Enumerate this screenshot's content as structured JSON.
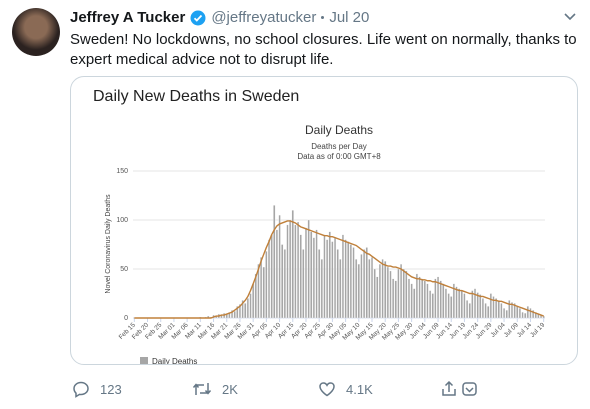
{
  "tweet": {
    "author": "Jeffrey A Tucker",
    "handle": "@jeffreyatucker",
    "date": "Jul 20",
    "text": "Sweden! No lockdowns, no school closures. Life went on normally, thanks to expert medical advice not to disrupt life."
  },
  "card": {
    "title": "Daily New Deaths in Sweden"
  },
  "actions": {
    "replies": "123",
    "retweets": "2K",
    "likes": "4.1K"
  },
  "chart_data": {
    "type": "bar",
    "title": "Daily Deaths",
    "subtitle": "Deaths per Day",
    "note": "Data as of 0:00 GMT+8",
    "y_label": "Novel Coronavirus Daily Deaths",
    "ylim": [
      0,
      150
    ],
    "yticks": [
      0,
      50,
      100,
      150
    ],
    "grid": true,
    "categories": [
      "Feb 15",
      null,
      null,
      null,
      null,
      "Feb 20",
      null,
      null,
      null,
      null,
      "Feb 25",
      null,
      null,
      null,
      null,
      "Mar 01",
      null,
      null,
      null,
      null,
      "Mar 06",
      null,
      null,
      null,
      null,
      "Mar 11",
      null,
      null,
      null,
      null,
      "Mar 16",
      null,
      null,
      null,
      null,
      "Mar 21",
      null,
      null,
      null,
      null,
      "Mar 26",
      null,
      null,
      null,
      null,
      "Mar 31",
      null,
      null,
      null,
      null,
      "Apr 05",
      null,
      null,
      null,
      null,
      "Apr 10",
      null,
      null,
      null,
      null,
      "Apr 15",
      null,
      null,
      null,
      null,
      "Apr 20",
      null,
      null,
      null,
      null,
      "Apr 25",
      null,
      null,
      null,
      null,
      "Apr 30",
      null,
      null,
      null,
      null,
      "May 05",
      null,
      null,
      null,
      null,
      "May 10",
      null,
      null,
      null,
      null,
      "May 15",
      null,
      null,
      null,
      null,
      "May 20",
      null,
      null,
      null,
      null,
      "May 25",
      null,
      null,
      null,
      null,
      "May 30",
      null,
      null,
      null,
      null,
      "Jun 04",
      null,
      null,
      null,
      null,
      "Jun 09",
      null,
      null,
      null,
      null,
      "Jun 14",
      null,
      null,
      null,
      null,
      "Jun 19",
      null,
      null,
      null,
      null,
      "Jun 24",
      null,
      null,
      null,
      null,
      "Jun 29",
      null,
      null,
      null,
      null,
      "Jul 04",
      null,
      null,
      null,
      null,
      "Jul 09",
      null,
      null,
      null,
      null,
      "Jul 14",
      null,
      null,
      null,
      null,
      "Jul 19"
    ],
    "series": [
      {
        "name": "Daily Deaths",
        "type": "bar",
        "color": "#a6a6a6",
        "values": [
          0,
          0,
          0,
          0,
          0,
          0,
          0,
          0,
          0,
          0,
          0,
          0,
          0,
          0,
          0,
          0,
          0,
          0,
          0,
          0,
          0,
          0,
          0,
          0,
          0,
          1,
          0,
          1,
          2,
          1,
          3,
          2,
          4,
          3,
          5,
          4,
          6,
          8,
          7,
          12,
          14,
          18,
          15,
          20,
          25,
          35,
          45,
          55,
          62,
          52,
          68,
          80,
          85,
          115,
          90,
          105,
          75,
          70,
          95,
          100,
          110,
          95,
          98,
          85,
          70,
          92,
          100,
          88,
          82,
          90,
          70,
          60,
          85,
          80,
          88,
          78,
          82,
          70,
          60,
          85,
          80,
          78,
          75,
          72,
          60,
          55,
          65,
          70,
          72,
          60,
          62,
          50,
          42,
          55,
          60,
          58,
          52,
          48,
          40,
          38,
          50,
          55,
          50,
          48,
          40,
          35,
          30,
          45,
          42,
          40,
          38,
          35,
          28,
          25,
          40,
          42,
          38,
          35,
          30,
          25,
          22,
          35,
          32,
          30,
          28,
          25,
          18,
          15,
          28,
          30,
          26,
          24,
          20,
          15,
          12,
          25,
          22,
          20,
          18,
          15,
          10,
          8,
          18,
          16,
          15,
          12,
          10,
          6,
          5,
          12,
          10,
          8,
          6,
          4,
          3,
          2
        ]
      },
      {
        "type": "line",
        "color": "#c0803a",
        "values": [
          0,
          0,
          0,
          0,
          0,
          0,
          0,
          0,
          0,
          0,
          0,
          0,
          0,
          0,
          0,
          0,
          0,
          0,
          0,
          0,
          0,
          0,
          0,
          0,
          0,
          0,
          0,
          0,
          0,
          0,
          1,
          2,
          2,
          3,
          3,
          4,
          5,
          6,
          8,
          10,
          12,
          15,
          18,
          22,
          28,
          35,
          42,
          50,
          58,
          65,
          72,
          78,
          85,
          90,
          94,
          96,
          97,
          98,
          99,
          99,
          98,
          97,
          95,
          93,
          92,
          91,
          90,
          89,
          88,
          87,
          86,
          85,
          84,
          84,
          83,
          83,
          82,
          81,
          80,
          79,
          78,
          77,
          76,
          75,
          74,
          72,
          70,
          68,
          66,
          65,
          63,
          61,
          59,
          57,
          55,
          54,
          53,
          53,
          52,
          52,
          51,
          50,
          48,
          46,
          44,
          42,
          41,
          40,
          40,
          39,
          39,
          38,
          38,
          37,
          37,
          36,
          35,
          34,
          33,
          32,
          31,
          30,
          29,
          28,
          28,
          27,
          26,
          25,
          25,
          24,
          23,
          22,
          22,
          21,
          20,
          19,
          18,
          18,
          17,
          17,
          16,
          15,
          14,
          14,
          13,
          12,
          11,
          10,
          9,
          8,
          7,
          6,
          5,
          4,
          3,
          2
        ]
      }
    ]
  }
}
